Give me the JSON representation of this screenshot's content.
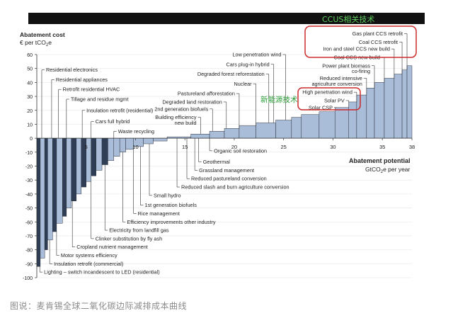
{
  "header_text": "CCUS相关技术",
  "renewables_label": "新能源技术",
  "caption": "图说：麦肯锡全球二氧化碳边际减排成本曲线",
  "colors": {
    "header_bar": "#111111",
    "header_text": "#5fcf5f",
    "bar_fill": "#a9bcd8",
    "bar_fill_dark": "#2f3d55",
    "bar_stroke": "#1e2633",
    "box_stroke": "#cc2b2b",
    "green_label": "#2e9e3a"
  },
  "chart_data": {
    "type": "bar",
    "title": "Abatement cost",
    "ylabel": "€ per tCO2e",
    "xlabel": "Abatement potential",
    "xunit": "GtCO2e per year",
    "ylim": [
      -100,
      60
    ],
    "xlim": [
      0,
      38
    ],
    "y_ticks": [
      "60",
      "50",
      "40",
      "30",
      "20",
      "10",
      "0",
      "-10",
      "-20",
      "-30",
      "-40",
      "-50",
      "-60",
      "-70",
      "-80",
      "-90",
      "-100"
    ],
    "x_ticks": [
      "5",
      "10",
      "15",
      "20",
      "25",
      "30",
      "35",
      "38"
    ],
    "x_tick_values": [
      5,
      10,
      15,
      20,
      25,
      30,
      35,
      38
    ],
    "bars": [
      {
        "x0": 0.0,
        "x1": 0.35,
        "v": -92
      },
      {
        "x0": 0.35,
        "x1": 0.8,
        "v": -86
      },
      {
        "x0": 0.8,
        "x1": 1.1,
        "v": -80
      },
      {
        "x0": 1.1,
        "x1": 1.6,
        "v": -73
      },
      {
        "x0": 1.6,
        "x1": 2.0,
        "v": -67
      },
      {
        "x0": 2.0,
        "x1": 2.6,
        "v": -61
      },
      {
        "x0": 2.6,
        "x1": 3.0,
        "v": -56
      },
      {
        "x0": 3.0,
        "x1": 3.5,
        "v": -50
      },
      {
        "x0": 3.5,
        "x1": 4.0,
        "v": -45
      },
      {
        "x0": 4.0,
        "x1": 4.5,
        "v": -40
      },
      {
        "x0": 4.5,
        "x1": 5.0,
        "v": -35
      },
      {
        "x0": 5.0,
        "x1": 5.5,
        "v": -31
      },
      {
        "x0": 5.5,
        "x1": 6.0,
        "v": -27
      },
      {
        "x0": 6.0,
        "x1": 6.6,
        "v": -23
      },
      {
        "x0": 6.6,
        "x1": 7.2,
        "v": -19
      },
      {
        "x0": 7.2,
        "x1": 7.8,
        "v": -16
      },
      {
        "x0": 7.8,
        "x1": 8.4,
        "v": -13
      },
      {
        "x0": 8.4,
        "x1": 9.0,
        "v": -10
      },
      {
        "x0": 9.0,
        "x1": 9.8,
        "v": -8
      },
      {
        "x0": 9.8,
        "x1": 10.8,
        "v": -6
      },
      {
        "x0": 10.8,
        "x1": 11.8,
        "v": -4
      },
      {
        "x0": 11.8,
        "x1": 13.2,
        "v": -2
      },
      {
        "x0": 13.2,
        "x1": 15.6,
        "v": 1
      },
      {
        "x0": 15.6,
        "x1": 17.5,
        "v": 3
      },
      {
        "x0": 17.5,
        "x1": 19.0,
        "v": 5
      },
      {
        "x0": 19.0,
        "x1": 20.5,
        "v": 7
      },
      {
        "x0": 20.5,
        "x1": 22.2,
        "v": 9
      },
      {
        "x0": 22.2,
        "x1": 24.2,
        "v": 11
      },
      {
        "x0": 24.2,
        "x1": 25.8,
        "v": 13
      },
      {
        "x0": 25.8,
        "x1": 26.8,
        "v": 15
      },
      {
        "x0": 26.8,
        "x1": 28.6,
        "v": 17
      },
      {
        "x0": 28.6,
        "x1": 30.2,
        "v": 19
      },
      {
        "x0": 30.2,
        "x1": 31.6,
        "v": 22
      },
      {
        "x0": 31.6,
        "x1": 32.4,
        "v": 26
      },
      {
        "x0": 32.4,
        "x1": 33.4,
        "v": 31
      },
      {
        "x0": 33.4,
        "x1": 34.2,
        "v": 36
      },
      {
        "x0": 34.2,
        "x1": 35.2,
        "v": 40
      },
      {
        "x0": 35.2,
        "x1": 36.2,
        "v": 43
      },
      {
        "x0": 36.2,
        "x1": 37.0,
        "v": 46
      },
      {
        "x0": 37.0,
        "x1": 37.5,
        "v": 49
      },
      {
        "x0": 37.5,
        "x1": 38.0,
        "v": 52
      }
    ],
    "annotations_top": [
      {
        "text": "Residential electronics",
        "x": 0.5,
        "y": 49
      },
      {
        "text": "Residential appliances",
        "x": 1.5,
        "y": 42
      },
      {
        "text": "Retrofit residential HVAC",
        "x": 2.2,
        "y": 35
      },
      {
        "text": "Tillage and residue mgmt",
        "x": 3.0,
        "y": 28
      },
      {
        "text": "Insulation retrofit (residential)",
        "x": 4.6,
        "y": 20
      },
      {
        "text": "Cars full hybrid",
        "x": 5.5,
        "y": 12
      },
      {
        "text": "Waste recycling",
        "x": 7.8,
        "y": 5
      }
    ],
    "annotations_mid": [
      {
        "text": "Low penetration wind",
        "x": 25.2,
        "y": 60
      },
      {
        "text": "Cars plug-in hybrid",
        "x": 24.0,
        "y": 53
      },
      {
        "text": "Degraded forest reforestation",
        "x": 23.5,
        "y": 46
      },
      {
        "text": "Nuclear",
        "x": 22.2,
        "y": 39
      },
      {
        "text": "Pastureland afforestation",
        "x": 20.5,
        "y": 32
      },
      {
        "text": "Degraded land restoration",
        "x": 19.2,
        "y": 26
      },
      {
        "text": "2nd generation biofuels",
        "x": 17.8,
        "y": 21
      },
      {
        "text": "Building efficiency",
        "x": 16.6,
        "y": 15
      },
      {
        "text": "new build",
        "x": 16.6,
        "y": 11
      }
    ],
    "annotations_right": [
      {
        "text": "Gas plant CCS retrofit",
        "x": 37.5,
        "y": 75
      },
      {
        "text": "Coal CCS retrofit",
        "x": 37.0,
        "y": 69
      },
      {
        "text": "Iron and steel CCS new build",
        "x": 36.2,
        "y": 64
      },
      {
        "text": "Coal CCS new build",
        "x": 35.2,
        "y": 58
      },
      {
        "text": "Power plant biomass",
        "x": 34.2,
        "y": 52
      },
      {
        "text": "co-firing",
        "x": 34.2,
        "y": 48
      },
      {
        "text": "Reduced intensive",
        "x": 33.4,
        "y": 43
      },
      {
        "text": "agriculture conversion",
        "x": 33.4,
        "y": 39
      },
      {
        "text": "High penetration wind",
        "x": 32.4,
        "y": 33
      },
      {
        "text": "Solar PV",
        "x": 31.6,
        "y": 27
      },
      {
        "text": "Solar CSP",
        "x": 30.4,
        "y": 22
      }
    ],
    "annotations_bottom_mid": [
      {
        "text": "Organic soil restoration",
        "x": 17.5,
        "y": -9
      },
      {
        "text": "Geothermal",
        "x": 16.4,
        "y": -17
      },
      {
        "text": "Grassland management",
        "x": 16.0,
        "y": -23
      },
      {
        "text": "Reduced pastureland conversion",
        "x": 15.2,
        "y": -29
      },
      {
        "text": "Reduced slash and burn agriculture conversion",
        "x": 14.2,
        "y": -35
      }
    ],
    "annotations_bottom_left": [
      {
        "text": "Small hydro",
        "x": 11.4,
        "y": -41
      },
      {
        "text": "1st generation biofuels",
        "x": 10.5,
        "y": -48
      },
      {
        "text": "Rice management",
        "x": 9.8,
        "y": -54
      },
      {
        "text": "Efficiency improvements other industry",
        "x": 8.7,
        "y": -60
      },
      {
        "text": "Electricity from landfill gas",
        "x": 6.9,
        "y": -66
      },
      {
        "text": "Clinker substitution by fly ash",
        "x": 5.5,
        "y": -72
      },
      {
        "text": "Cropland nutrient management",
        "x": 3.6,
        "y": -78
      },
      {
        "text": "Motor systems efficiency",
        "x": 2.0,
        "y": -84
      },
      {
        "text": "Insulation retrofit (commercial)",
        "x": 1.3,
        "y": -90
      },
      {
        "text": "Lighting – switch incandescent to LED (residential)",
        "x": 0.3,
        "y": -96
      }
    ]
  }
}
